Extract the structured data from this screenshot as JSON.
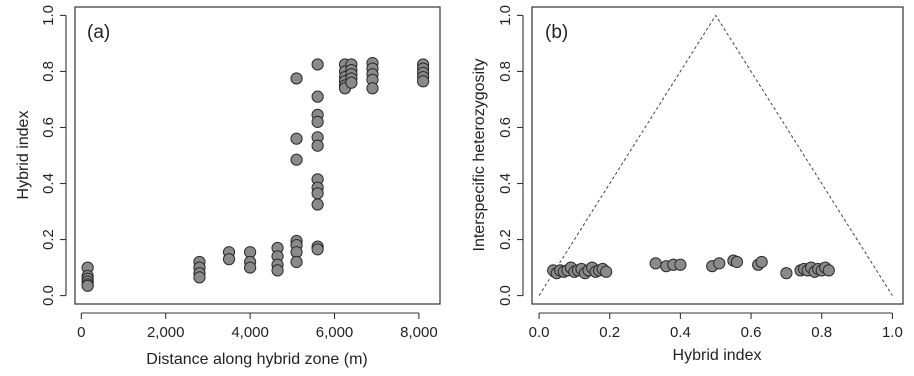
{
  "chart_data": [
    {
      "type": "scatter",
      "panel_label": "(a)",
      "xlabel": "Distance along hybrid zone (m)",
      "ylabel": "Hybrid index",
      "xlim": [
        -150,
        8500
      ],
      "ylim": [
        -0.03,
        1.03
      ],
      "xticks": [
        {
          "value": 0,
          "label": "0"
        },
        {
          "value": 2000,
          "label": "2,000"
        },
        {
          "value": 4000,
          "label": "4,000"
        },
        {
          "value": 6000,
          "label": "6,000"
        },
        {
          "value": 8000,
          "label": "8,000"
        }
      ],
      "yticks": [
        {
          "value": 0.0,
          "label": "0.0"
        },
        {
          "value": 0.2,
          "label": "0.2"
        },
        {
          "value": 0.4,
          "label": "0.4"
        },
        {
          "value": 0.6,
          "label": "0.6"
        },
        {
          "value": 0.8,
          "label": "0.8"
        },
        {
          "value": 1.0,
          "label": "1.0"
        }
      ],
      "grid": false,
      "point_color": "#8a8a8a",
      "points": [
        [
          150,
          0.1
        ],
        [
          150,
          0.07
        ],
        [
          150,
          0.06
        ],
        [
          150,
          0.05
        ],
        [
          150,
          0.04
        ],
        [
          150,
          0.035
        ],
        [
          2800,
          0.12
        ],
        [
          2800,
          0.1
        ],
        [
          2800,
          0.08
        ],
        [
          2800,
          0.065
        ],
        [
          3500,
          0.155
        ],
        [
          3500,
          0.13
        ],
        [
          4000,
          0.155
        ],
        [
          4000,
          0.12
        ],
        [
          4000,
          0.1
        ],
        [
          4650,
          0.17
        ],
        [
          4650,
          0.14
        ],
        [
          4650,
          0.11
        ],
        [
          4650,
          0.09
        ],
        [
          5100,
          0.775
        ],
        [
          5100,
          0.56
        ],
        [
          5100,
          0.485
        ],
        [
          5100,
          0.195
        ],
        [
          5100,
          0.18
        ],
        [
          5100,
          0.155
        ],
        [
          5100,
          0.12
        ],
        [
          5600,
          0.825
        ],
        [
          5600,
          0.71
        ],
        [
          5600,
          0.645
        ],
        [
          5600,
          0.62
        ],
        [
          5600,
          0.565
        ],
        [
          5600,
          0.535
        ],
        [
          5600,
          0.415
        ],
        [
          5600,
          0.385
        ],
        [
          5600,
          0.365
        ],
        [
          5600,
          0.325
        ],
        [
          5600,
          0.175
        ],
        [
          5600,
          0.165
        ],
        [
          6250,
          0.825
        ],
        [
          6250,
          0.8
        ],
        [
          6250,
          0.78
        ],
        [
          6250,
          0.765
        ],
        [
          6250,
          0.75
        ],
        [
          6250,
          0.74
        ],
        [
          6400,
          0.825
        ],
        [
          6400,
          0.805
        ],
        [
          6400,
          0.79
        ],
        [
          6400,
          0.775
        ],
        [
          6400,
          0.76
        ],
        [
          6900,
          0.83
        ],
        [
          6900,
          0.81
        ],
        [
          6900,
          0.79
        ],
        [
          6900,
          0.77
        ],
        [
          6900,
          0.74
        ],
        [
          8100,
          0.825
        ],
        [
          8100,
          0.81
        ],
        [
          8100,
          0.795
        ],
        [
          8100,
          0.78
        ],
        [
          8100,
          0.765
        ]
      ]
    },
    {
      "type": "scatter",
      "panel_label": "(b)",
      "xlabel": "Hybrid index",
      "ylabel": "Interspecific heterozygosity",
      "xlim": [
        -0.02,
        1.03
      ],
      "ylim": [
        -0.03,
        1.03
      ],
      "xticks": [
        {
          "value": 0.0,
          "label": "0.0"
        },
        {
          "value": 0.2,
          "label": "0.2"
        },
        {
          "value": 0.4,
          "label": "0.4"
        },
        {
          "value": 0.6,
          "label": "0.6"
        },
        {
          "value": 0.8,
          "label": "0.8"
        },
        {
          "value": 1.0,
          "label": "1.0"
        }
      ],
      "yticks": [
        {
          "value": 0.0,
          "label": "0.0"
        },
        {
          "value": 0.2,
          "label": "0.2"
        },
        {
          "value": 0.4,
          "label": "0.4"
        },
        {
          "value": 0.6,
          "label": "0.6"
        },
        {
          "value": 0.8,
          "label": "0.8"
        },
        {
          "value": 1.0,
          "label": "1.0"
        }
      ],
      "grid": false,
      "point_color": "#8a8a8a",
      "reference_triangle": [
        [
          0.0,
          0.0
        ],
        [
          0.5,
          1.0
        ],
        [
          1.0,
          0.0
        ]
      ],
      "points": [
        [
          0.04,
          0.09
        ],
        [
          0.05,
          0.08
        ],
        [
          0.06,
          0.09
        ],
        [
          0.07,
          0.085
        ],
        [
          0.08,
          0.09
        ],
        [
          0.09,
          0.1
        ],
        [
          0.1,
          0.085
        ],
        [
          0.11,
          0.09
        ],
        [
          0.12,
          0.095
        ],
        [
          0.13,
          0.08
        ],
        [
          0.14,
          0.09
        ],
        [
          0.15,
          0.1
        ],
        [
          0.16,
          0.085
        ],
        [
          0.17,
          0.09
        ],
        [
          0.18,
          0.095
        ],
        [
          0.19,
          0.085
        ],
        [
          0.33,
          0.115
        ],
        [
          0.36,
          0.105
        ],
        [
          0.38,
          0.11
        ],
        [
          0.4,
          0.11
        ],
        [
          0.49,
          0.105
        ],
        [
          0.51,
          0.115
        ],
        [
          0.55,
          0.125
        ],
        [
          0.56,
          0.12
        ],
        [
          0.62,
          0.11
        ],
        [
          0.63,
          0.12
        ],
        [
          0.7,
          0.08
        ],
        [
          0.74,
          0.09
        ],
        [
          0.75,
          0.095
        ],
        [
          0.76,
          0.09
        ],
        [
          0.77,
          0.1
        ],
        [
          0.78,
          0.085
        ],
        [
          0.79,
          0.095
        ],
        [
          0.8,
          0.09
        ],
        [
          0.81,
          0.1
        ],
        [
          0.82,
          0.09
        ]
      ]
    }
  ]
}
